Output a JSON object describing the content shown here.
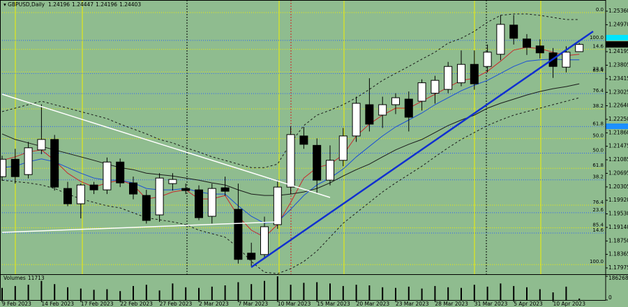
{
  "chart_data": {
    "type": "candlestick",
    "title": "GBPUSD,Daily",
    "categories": [
      "9 Feb 2023",
      null,
      null,
      "14 Feb 2023",
      null,
      null,
      "17 Feb 2023",
      null,
      null,
      "22 Feb 2023",
      null,
      null,
      "27 Feb 2023",
      null,
      null,
      "2 Mar 2023",
      null,
      null,
      "7 Mar 2023",
      null,
      null,
      "10 Mar 2023",
      null,
      null,
      "15 Mar 2023",
      null,
      null,
      "20 Mar 2023",
      null,
      null,
      "23 Mar 2023",
      null,
      null,
      "28 Mar 2023",
      null,
      null,
      "31 Mar 2023",
      null,
      null,
      "5 Apr 2023",
      null,
      null,
      "10 Apr 2023",
      null,
      null
    ],
    "open": [
      1.206,
      1.211,
      1.2066,
      1.2137,
      1.2167,
      1.2026,
      1.1982,
      1.2036,
      1.2022,
      1.2102,
      1.2042,
      1.2006,
      1.195,
      1.204,
      1.2026,
      1.2022,
      1.1946,
      1.2028,
      1.1966,
      1.184,
      1.1836,
      1.1922,
      1.203,
      1.2177,
      1.215,
      1.205,
      1.2107,
      1.2177,
      1.2267,
      1.2237,
      1.2267,
      1.2283,
      1.2277,
      1.23,
      1.2311,
      1.233,
      1.2383,
      1.2377,
      1.2412,
      1.2496,
      1.2456,
      1.2436,
      1.2416,
      1.2375,
      1.24196
    ],
    "high": [
      1.212,
      1.214,
      1.216,
      1.2268,
      1.218,
      1.2045,
      1.204,
      1.2045,
      1.2115,
      1.2112,
      1.206,
      1.2022,
      1.207,
      1.207,
      1.204,
      1.2035,
      1.204,
      1.206,
      1.204,
      1.187,
      1.1945,
      1.205,
      1.2205,
      1.2203,
      1.217,
      1.215,
      1.22,
      1.229,
      1.2343,
      1.229,
      1.23,
      1.2305,
      1.234,
      1.235,
      1.239,
      1.2423,
      1.2423,
      1.244,
      1.2525,
      1.2525,
      1.247,
      1.2455,
      1.243,
      1.2435,
      1.24447
    ],
    "low": [
      1.2048,
      1.204,
      1.2055,
      1.2125,
      1.202,
      1.1975,
      1.194,
      1.201,
      1.201,
      1.203,
      1.1995,
      1.1925,
      1.193,
      1.202,
      1.201,
      1.1935,
      1.1925,
      1.2005,
      1.181,
      1.1803,
      1.1825,
      1.191,
      1.201,
      1.214,
      1.201,
      1.2035,
      1.209,
      1.216,
      1.219,
      1.22,
      1.224,
      1.219,
      1.225,
      1.227,
      1.23,
      1.232,
      1.231,
      1.236,
      1.2395,
      1.244,
      1.241,
      1.24,
      1.2344,
      1.236,
      1.24196
    ],
    "close": [
      1.211,
      1.206,
      1.2143,
      1.2167,
      1.203,
      1.1982,
      1.2036,
      1.2022,
      1.2102,
      1.2042,
      1.201,
      1.1934,
      1.2056,
      1.2052,
      1.202,
      1.1942,
      1.2026,
      1.2018,
      1.1822,
      1.1822,
      1.1916,
      1.203,
      1.2181,
      1.2153,
      1.205,
      1.2107,
      1.2177,
      1.2271,
      1.2211,
      1.2267,
      1.2287,
      1.2231,
      1.233,
      1.2337,
      1.2377,
      1.2383,
      1.2327,
      1.2418,
      1.2498,
      1.2458,
      1.2432,
      1.2416,
      1.2377,
      1.2418,
      1.24403
    ],
    "up_color": "#ffffff",
    "down_color": "#000000",
    "ylim": [
      1.17794,
      1.25681
    ],
    "yticks": [
      {
        "value": 1.2536,
        "label": "1.25360"
      },
      {
        "value": 1.2497,
        "label": "1.24970"
      },
      1.24195,
      1.23805,
      1.23415,
      1.23025,
      {
        "value": 1.2264,
        "label": "1.22640"
      },
      {
        "value": 1.2225,
        "label": "1.22250"
      },
      {
        "value": 1.2186,
        "label": "1.21860"
      },
      1.21475,
      1.21085,
      1.20695,
      1.20305,
      {
        "value": 1.1992,
        "label": "1.19920"
      },
      {
        "value": 1.1953,
        "label": "1.19530"
      },
      {
        "value": 1.1914,
        "label": "1.19140"
      },
      {
        "value": 1.1875,
        "label": "1.18750"
      },
      1.18365,
      1.17975
    ],
    "indicators": [
      {
        "color": "#c8282c",
        "dash": "none",
        "values": [
          1.2107,
          1.2117,
          1.2131,
          1.2137,
          1.2107,
          1.207,
          1.2046,
          1.203,
          1.2042,
          1.205,
          1.2036,
          1.1996,
          1.2002,
          1.2016,
          1.2022,
          1.1996,
          1.1996,
          1.2006,
          1.1946,
          1.1906,
          1.1886,
          1.1922,
          1.1986,
          1.2056,
          1.2086,
          1.2096,
          1.2123,
          1.2177,
          1.2211,
          1.2237,
          1.2257,
          1.2257,
          1.2277,
          1.2297,
          1.2317,
          1.2337,
          1.2343,
          1.2363,
          1.2392,
          1.2424,
          1.2432,
          1.2428,
          1.2418,
          1.2408,
          1.2412
        ]
      },
      {
        "color": "#1a4fd6",
        "dash": "none",
        "values": [
          1.2086,
          1.209,
          1.2103,
          1.2111,
          1.2103,
          1.2086,
          1.207,
          1.2056,
          1.205,
          1.205,
          1.2042,
          1.2026,
          1.2022,
          1.2022,
          1.2026,
          1.2016,
          1.201,
          1.201,
          1.1976,
          1.1946,
          1.1926,
          1.193,
          1.1966,
          1.2006,
          1.2036,
          1.2056,
          1.2082,
          1.2117,
          1.2147,
          1.2177,
          1.2203,
          1.2223,
          1.2243,
          1.2267,
          1.2287,
          1.2307,
          1.2323,
          1.2337,
          1.2357,
          1.2377,
          1.2392,
          1.2396,
          1.2398,
          1.2396,
          1.2396
        ]
      },
      {
        "color": "#1a1a1a",
        "dash": "none",
        "values": [
          1.2183,
          1.2167,
          1.2157,
          1.2147,
          1.2137,
          1.2127,
          1.2117,
          1.2107,
          1.2096,
          1.2086,
          1.208,
          1.207,
          1.2066,
          1.2062,
          1.2056,
          1.205,
          1.2042,
          1.2036,
          1.2022,
          1.201,
          1.2006,
          1.2006,
          1.201,
          1.2016,
          1.2026,
          1.2042,
          1.2062,
          1.208,
          1.2096,
          1.2117,
          1.2137,
          1.2153,
          1.2167,
          1.2187,
          1.2207,
          1.2223,
          1.2237,
          1.2257,
          1.2271,
          1.2283,
          1.2295,
          1.2305,
          1.2313,
          1.2319,
          1.2327
        ]
      },
      {
        "color": "#1a1a1a",
        "dash": "3 3",
        "values": [
          1.2247,
          1.2257,
          1.2267,
          1.2277,
          1.2267,
          1.2257,
          1.2247,
          1.2237,
          1.2227,
          1.2211,
          1.2197,
          1.2183,
          1.2167,
          1.2157,
          1.2143,
          1.2131,
          1.2117,
          1.2107,
          1.2096,
          1.2086,
          1.2086,
          1.2096,
          1.2157,
          1.2207,
          1.2237,
          1.2251,
          1.2267,
          1.2287,
          1.2311,
          1.2337,
          1.2357,
          1.2377,
          1.2398,
          1.2418,
          1.2444,
          1.2458,
          1.2478,
          1.2504,
          1.2524,
          1.2528,
          1.2528,
          1.2524,
          1.2518,
          1.2512,
          1.2512
        ]
      },
      {
        "color": "#1a1a1a",
        "dash": "3 3",
        "values": [
          1.205,
          1.2046,
          1.2042,
          1.2036,
          1.2026,
          1.201,
          1.1996,
          1.1986,
          1.1976,
          1.197,
          1.1956,
          1.1942,
          1.1936,
          1.193,
          1.1922,
          1.1906,
          1.1896,
          1.1886,
          1.1856,
          1.1816,
          1.1785,
          1.1781,
          1.1795,
          1.1816,
          1.1846,
          1.1886,
          1.1926,
          1.1956,
          1.1986,
          1.2016,
          1.2042,
          1.2066,
          1.209,
          1.2117,
          1.2143,
          1.2167,
          1.2187,
          1.2207,
          1.2223,
          1.2237,
          1.2247,
          1.2257,
          1.2267,
          1.2277,
          1.2287
        ]
      }
    ],
    "fibonacci": [
      {
        "color": "#f0f000",
        "start": 1.2532,
        "end": 1.1807,
        "levels": [
          {
            "value": 0,
            "label": "0.0"
          },
          14.6,
          23.6,
          38.2,
          {
            "value": 50,
            "label": "50.0"
          },
          61.8,
          76.4,
          85.4,
          {
            "value": 100,
            "label": "100.0"
          }
        ]
      },
      {
        "color": "#2a5cff",
        "start": 1.1803,
        "end": 1.2452,
        "levels": [
          14.6,
          23.6,
          38.2,
          {
            "value": 50,
            "label": "50.0"
          },
          61.8,
          76.4,
          85.4,
          {
            "value": 100,
            "label": "100.0"
          }
        ]
      }
    ],
    "volume": {
      "name": "Volumes",
      "color": "#000000",
      "values": [
        95000,
        110000,
        120000,
        150000,
        125000,
        100000,
        90000,
        80000,
        85000,
        70000,
        110000,
        120000,
        75000,
        130000,
        100000,
        95000,
        105000,
        115000,
        140000,
        125000,
        150000,
        186268,
        120000,
        135000,
        140000,
        130000,
        110000,
        120000,
        115000,
        100000,
        95000,
        105000,
        90000,
        110000,
        100000,
        95000,
        120000,
        105000,
        130000,
        110000,
        100000,
        85000,
        60000,
        105000,
        11713
      ],
      "ylim": [
        0,
        186268
      ],
      "yticks": [
        186268,
        0
      ]
    }
  }
}
